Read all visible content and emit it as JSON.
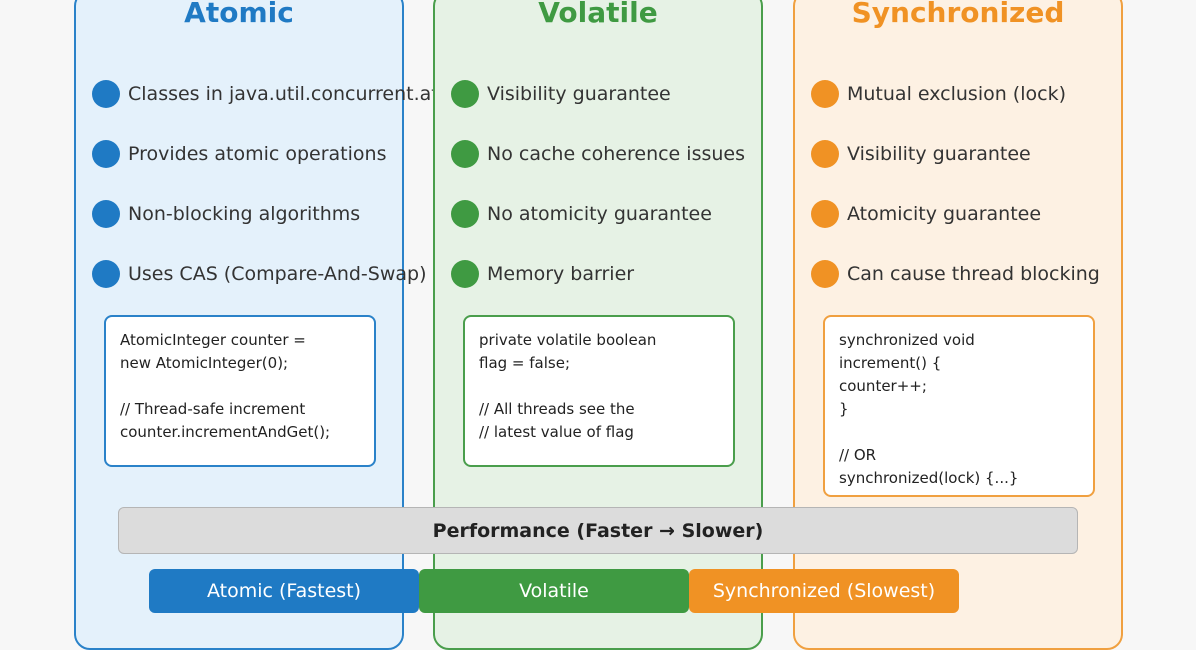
{
  "columns": {
    "atomic": {
      "title": "Atomic",
      "bullets": [
        "Classes in java.util.concurrent.atomic",
        "Provides atomic operations",
        "Non-blocking algorithms",
        "Uses CAS (Compare-And-Swap)"
      ],
      "code": "AtomicInteger counter =\nnew AtomicInteger(0);\n\n// Thread-safe increment\ncounter.incrementAndGet();"
    },
    "volatile": {
      "title": "Volatile",
      "bullets": [
        "Visibility guarantee",
        "No cache coherence issues",
        "No atomicity guarantee",
        "Memory barrier"
      ],
      "code": "private volatile boolean\nflag = false;\n\n// All threads see the\n// latest value of flag"
    },
    "sync": {
      "title": "Synchronized",
      "bullets": [
        "Mutual exclusion (lock)",
        "Visibility guarantee",
        "Atomicity guarantee",
        "Can cause thread blocking"
      ],
      "code": "synchronized void\nincrement() {\ncounter++;\n}\n\n// OR\nsynchronized(lock) {...}"
    }
  },
  "performance": {
    "title": "Performance (Faster → Slower)",
    "items": [
      "Atomic (Fastest)",
      "Volatile",
      "Synchronized (Slowest)"
    ]
  },
  "colors": {
    "atomic": "#1f7ac4",
    "volatile": "#3f9a42",
    "sync": "#f09224"
  }
}
